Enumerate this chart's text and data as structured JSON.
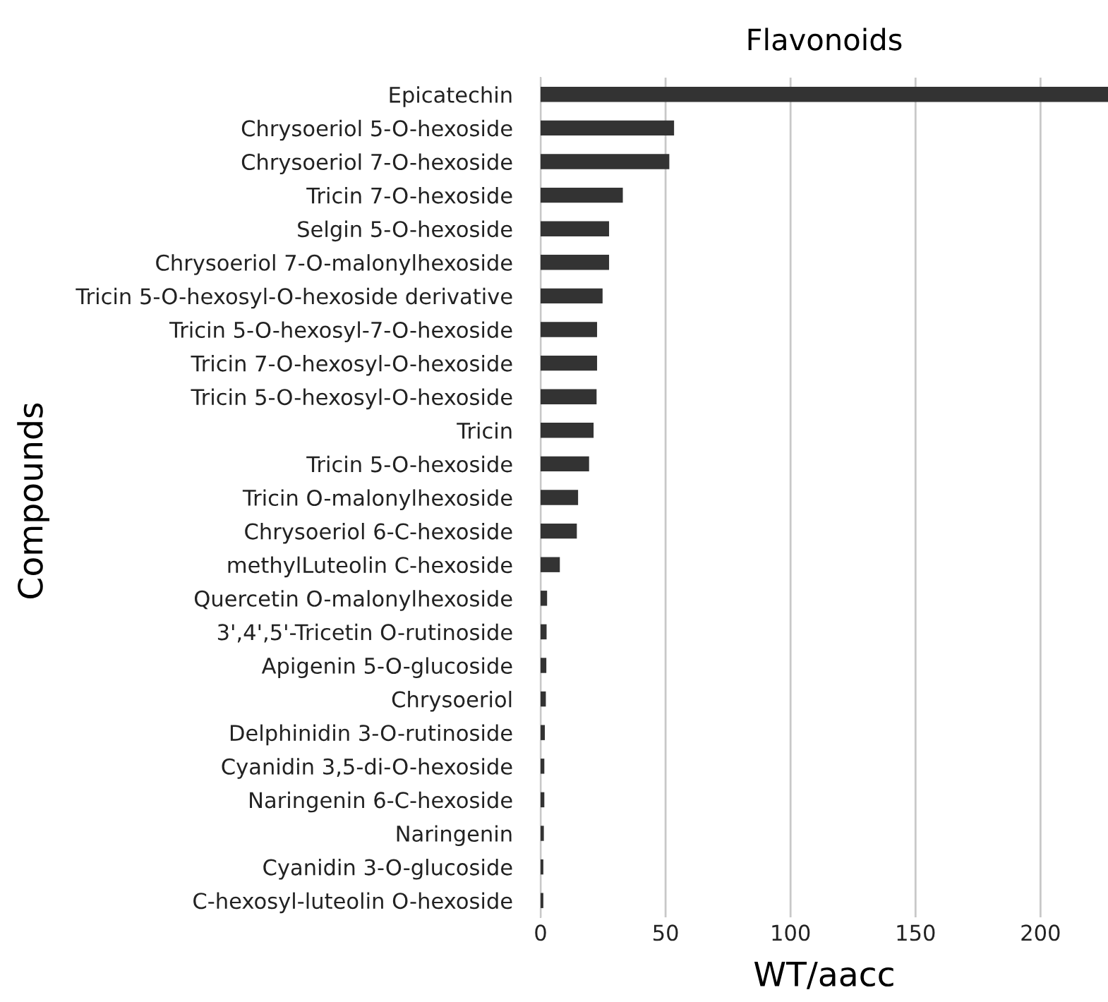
{
  "chart_data": {
    "type": "bar",
    "orientation": "horizontal",
    "title": "Flavonoids",
    "xlabel": "WT/aacc",
    "ylabel": "Compounds",
    "categories": [
      "Epicatechin",
      "Chrysoeriol 5-O-hexoside",
      "Chrysoeriol 7-O-hexoside",
      "Tricin 7-O-hexoside",
      "Selgin 5-O-hexoside",
      "Chrysoeriol 7-O-malonylhexoside",
      "Tricin 5-O-hexosyl-O-hexoside derivative",
      "Tricin 5-O-hexosyl-7-O-hexoside",
      "Tricin 7-O-hexosyl-O-hexoside",
      "Tricin 5-O-hexosyl-O-hexoside",
      "Tricin",
      "Tricin 5-O-hexoside",
      "Tricin O-malonylhexoside",
      "Chrysoeriol 6-C-hexoside",
      "methylLuteolin C-hexoside",
      "Quercetin O-malonylhexoside",
      "3',4',5'-Tricetin O-rutinoside",
      "Apigenin 5-O-glucoside",
      "Chrysoeriol",
      "Delphinidin 3-O-rutinoside",
      "Cyanidin 3,5-di-O-hexoside",
      "Naringenin 6-C-hexoside",
      "Naringenin",
      "Cyanidin 3-O-glucoside",
      "C-hexosyl-luteolin O-hexoside"
    ],
    "values": [
      227,
      53.4,
      51.5,
      32.9,
      27.4,
      27.4,
      24.8,
      22.6,
      22.6,
      22.4,
      21.2,
      19.4,
      15.0,
      14.5,
      7.7,
      2.6,
      2.4,
      2.3,
      2.1,
      1.7,
      1.5,
      1.5,
      1.3,
      1.1,
      1.1
    ],
    "color": "#333333",
    "xlim": [
      0,
      227
    ],
    "xticks": [
      0,
      50,
      100,
      150,
      200
    ],
    "grid": "x"
  }
}
